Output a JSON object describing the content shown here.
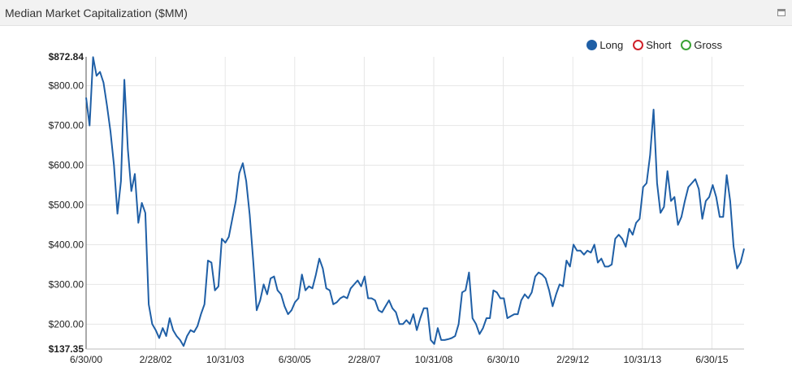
{
  "panel": {
    "title": "Median Market Capitalization ($MM)",
    "maximize_icon": "window-maximize-icon"
  },
  "legend": [
    {
      "label": "Long",
      "color": "#1f5fa6",
      "filled": true
    },
    {
      "label": "Short",
      "color": "#d0212a",
      "filled": false
    },
    {
      "label": "Gross",
      "color": "#3aa335",
      "filled": false
    }
  ],
  "chart_data": {
    "type": "line",
    "grid": true,
    "legend_position": "top-right",
    "x_tick_labels": [
      "6/30/00",
      "2/28/02",
      "10/31/03",
      "6/30/05",
      "2/28/07",
      "10/31/08",
      "6/30/10",
      "2/29/12",
      "10/31/13",
      "6/30/15"
    ],
    "y_tick_labels": [
      "$872.84",
      "$800.00",
      "$700.00",
      "$600.00",
      "$500.00",
      "$400.00",
      "$300.00",
      "$200.00",
      "$137.35"
    ],
    "ylim": [
      137.35,
      872.84
    ],
    "series": [
      {
        "name": "Long",
        "color": "#1f5fa6",
        "values": [
          770,
          700,
          872,
          825,
          835,
          808,
          750,
          685,
          600,
          478,
          560,
          815,
          640,
          535,
          578,
          455,
          505,
          480,
          250,
          200,
          185,
          165,
          190,
          170,
          215,
          185,
          170,
          160,
          145,
          170,
          185,
          180,
          195,
          225,
          250,
          360,
          355,
          285,
          295,
          415,
          405,
          420,
          465,
          510,
          580,
          605,
          560,
          475,
          360,
          235,
          260,
          300,
          275,
          315,
          320,
          285,
          275,
          245,
          225,
          235,
          255,
          265,
          325,
          285,
          295,
          290,
          325,
          365,
          340,
          290,
          285,
          250,
          255,
          265,
          270,
          265,
          290,
          300,
          310,
          295,
          320,
          265,
          265,
          260,
          235,
          230,
          245,
          260,
          240,
          230,
          200,
          200,
          210,
          200,
          225,
          185,
          215,
          240,
          240,
          160,
          150,
          190,
          160,
          160,
          162,
          165,
          170,
          200,
          280,
          285,
          330,
          215,
          200,
          175,
          190,
          215,
          215,
          285,
          280,
          265,
          265,
          215,
          220,
          225,
          225,
          260,
          275,
          265,
          280,
          320,
          330,
          325,
          315,
          285,
          245,
          275,
          300,
          295,
          360,
          345,
          400,
          385,
          385,
          375,
          385,
          380,
          400,
          355,
          365,
          345,
          345,
          350,
          415,
          425,
          415,
          395,
          440,
          425,
          455,
          465,
          545,
          555,
          625,
          740,
          555,
          480,
          495,
          585,
          510,
          520,
          450,
          470,
          510,
          545,
          555,
          565,
          540,
          465,
          510,
          520,
          550,
          520,
          470,
          470,
          575,
          510,
          395,
          340,
          355,
          390
        ]
      }
    ]
  }
}
